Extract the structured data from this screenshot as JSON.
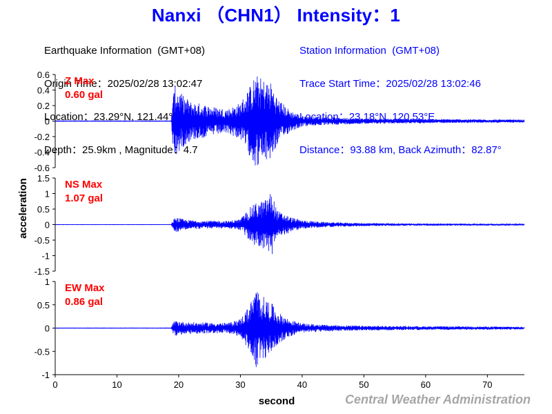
{
  "title": "Nanxi （CHN1） Intensity：1",
  "earthquake_info": {
    "header": "Earthquake Information  (GMT+08)",
    "origin_time": "Origin Time：2025/02/28 13:02:47",
    "location": "Location：23.29°N, 121.44°E",
    "depth_magnitude": "Depth：25.9km , Magnitude：4.7"
  },
  "station_info": {
    "header": "Station Information  (GMT+08)",
    "trace_start": "Trace Start Time：2025/02/28 13:02:46",
    "location": "Location：23.18°N, 120.53°E",
    "distance": "Distance：93.88 km, Back Azimuth：82.87°"
  },
  "credit": "Central Weather Administration",
  "colors": {
    "trace": "#0000ff",
    "max_label": "#ff0000",
    "axis": "#000000",
    "credit": "#a6a6a6"
  },
  "chart_data": {
    "type": "line",
    "xlabel": "second",
    "ylabel": "acceleration",
    "xlim": [
      0,
      76
    ],
    "xticks": [
      0,
      10,
      20,
      30,
      40,
      50,
      60,
      70
    ],
    "grid": false,
    "panels": [
      {
        "component": "Z",
        "max_label": "Z Max",
        "max_value": "0.60 gal",
        "ylim": [
          -0.6,
          0.6
        ],
        "yticks": [
          -0.6,
          -0.4,
          -0.2,
          0,
          0.2,
          0.4,
          0.6
        ],
        "ytick_labels": [
          "-0.6",
          "-0.4",
          "-0.2",
          "0",
          "0.2",
          "0.4",
          "0.6"
        ],
        "envelope": [
          [
            0,
            0.003
          ],
          [
            18.8,
            0.003
          ],
          [
            19.0,
            0.3
          ],
          [
            19.5,
            0.48
          ],
          [
            20.5,
            0.35
          ],
          [
            22,
            0.25
          ],
          [
            24,
            0.22
          ],
          [
            26,
            0.18
          ],
          [
            28,
            0.16
          ],
          [
            30,
            0.24
          ],
          [
            31.5,
            0.45
          ],
          [
            32.5,
            0.6
          ],
          [
            33.5,
            0.55
          ],
          [
            35,
            0.5
          ],
          [
            36,
            0.3
          ],
          [
            38,
            0.14
          ],
          [
            40,
            0.07
          ],
          [
            44,
            0.05
          ],
          [
            50,
            0.035
          ],
          [
            60,
            0.028
          ],
          [
            70,
            0.022
          ],
          [
            76,
            0.02
          ]
        ]
      },
      {
        "component": "NS",
        "max_label": "NS Max",
        "max_value": "1.07 gal",
        "ylim": [
          -1.5,
          1.5
        ],
        "yticks": [
          -1.5,
          -1,
          -0.5,
          0,
          0.5,
          1,
          1.5
        ],
        "ytick_labels": [
          "-1.5",
          "-1",
          "-0.5",
          "0",
          "0.5",
          "1",
          "1.5"
        ],
        "envelope": [
          [
            0,
            0.004
          ],
          [
            18.8,
            0.004
          ],
          [
            19.0,
            0.12
          ],
          [
            19.5,
            0.25
          ],
          [
            21,
            0.16
          ],
          [
            24,
            0.13
          ],
          [
            28,
            0.12
          ],
          [
            30,
            0.18
          ],
          [
            31.5,
            0.55
          ],
          [
            32.5,
            0.7
          ],
          [
            34,
            0.8
          ],
          [
            35,
            1.07
          ],
          [
            36,
            0.45
          ],
          [
            38,
            0.25
          ],
          [
            40,
            0.14
          ],
          [
            44,
            0.08
          ],
          [
            50,
            0.05
          ],
          [
            60,
            0.035
          ],
          [
            70,
            0.03
          ],
          [
            76,
            0.025
          ]
        ]
      },
      {
        "component": "EW",
        "max_label": "EW Max",
        "max_value": "0.86 gal",
        "ylim": [
          -1,
          1
        ],
        "yticks": [
          -1,
          -0.5,
          0,
          0.5,
          1
        ],
        "ytick_labels": [
          "-1",
          "-0.5",
          "0",
          "0.5",
          "1"
        ],
        "envelope": [
          [
            0,
            0.004
          ],
          [
            18.8,
            0.004
          ],
          [
            19.0,
            0.1
          ],
          [
            19.5,
            0.17
          ],
          [
            21,
            0.13
          ],
          [
            24,
            0.12
          ],
          [
            28,
            0.11
          ],
          [
            30,
            0.2
          ],
          [
            31.5,
            0.5
          ],
          [
            32.5,
            0.86
          ],
          [
            33.5,
            0.7
          ],
          [
            35,
            0.55
          ],
          [
            36,
            0.35
          ],
          [
            38,
            0.18
          ],
          [
            40,
            0.1
          ],
          [
            44,
            0.07
          ],
          [
            50,
            0.05
          ],
          [
            60,
            0.04
          ],
          [
            70,
            0.035
          ],
          [
            76,
            0.03
          ]
        ]
      }
    ]
  }
}
